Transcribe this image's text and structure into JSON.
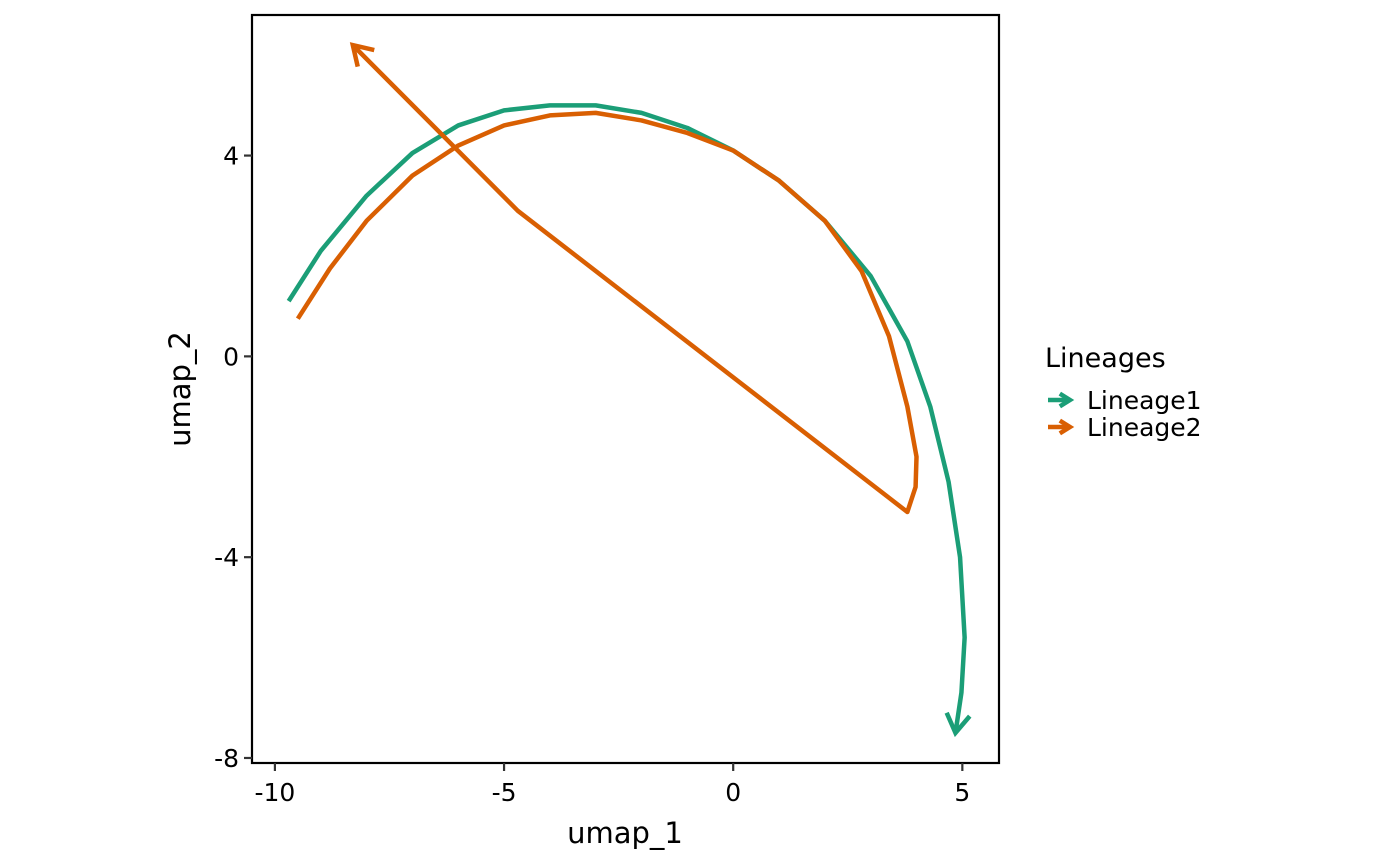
{
  "chart_data": {
    "type": "line",
    "title": "",
    "xlabel": "umap_1",
    "ylabel": "umap_2",
    "xlim": [
      -10.5,
      5.8
    ],
    "ylim": [
      -8.1,
      6.8
    ],
    "xticks": [
      -10,
      -5,
      0,
      5
    ],
    "yticks": [
      -8,
      -4,
      0,
      4
    ],
    "xtick_labels": [
      "-10",
      "-5",
      "0",
      "5"
    ],
    "ytick_labels": [
      "-8",
      "-4",
      "0",
      "4"
    ],
    "grid": false,
    "legend": {
      "title": "Lineages",
      "position": "right"
    },
    "series": [
      {
        "name": "Lineage1",
        "color": "#1b9e77",
        "arrow_at_end": true,
        "points": [
          [
            -9.7,
            1.1
          ],
          [
            -9.0,
            2.1
          ],
          [
            -8.0,
            3.2
          ],
          [
            -7.0,
            4.05
          ],
          [
            -6.0,
            4.6
          ],
          [
            -5.0,
            4.9
          ],
          [
            -4.0,
            5.0
          ],
          [
            -3.0,
            5.0
          ],
          [
            -2.0,
            4.85
          ],
          [
            -1.0,
            4.55
          ],
          [
            0.0,
            4.1
          ],
          [
            1.0,
            3.5
          ],
          [
            2.0,
            2.7
          ],
          [
            3.0,
            1.6
          ],
          [
            3.8,
            0.3
          ],
          [
            4.3,
            -1.0
          ],
          [
            4.7,
            -2.5
          ],
          [
            4.95,
            -4.0
          ],
          [
            5.05,
            -5.6
          ],
          [
            4.98,
            -6.7
          ],
          [
            4.85,
            -7.5
          ]
        ]
      },
      {
        "name": "Lineage2",
        "color": "#d95f02",
        "arrow_at_end": true,
        "points": [
          [
            -9.5,
            0.75
          ],
          [
            -8.8,
            1.75
          ],
          [
            -8.0,
            2.7
          ],
          [
            -7.0,
            3.6
          ],
          [
            -6.0,
            4.2
          ],
          [
            -5.0,
            4.6
          ],
          [
            -4.0,
            4.8
          ],
          [
            -3.0,
            4.85
          ],
          [
            -2.0,
            4.7
          ],
          [
            -1.0,
            4.45
          ],
          [
            0.0,
            4.1
          ],
          [
            1.0,
            3.5
          ],
          [
            2.0,
            2.7
          ],
          [
            2.8,
            1.7
          ],
          [
            3.4,
            0.4
          ],
          [
            3.8,
            -1.0
          ],
          [
            4.0,
            -2.0
          ],
          [
            3.98,
            -2.6
          ],
          [
            3.8,
            -3.1
          ],
          [
            -4.7,
            2.9
          ],
          [
            -8.3,
            6.2
          ]
        ]
      }
    ]
  }
}
